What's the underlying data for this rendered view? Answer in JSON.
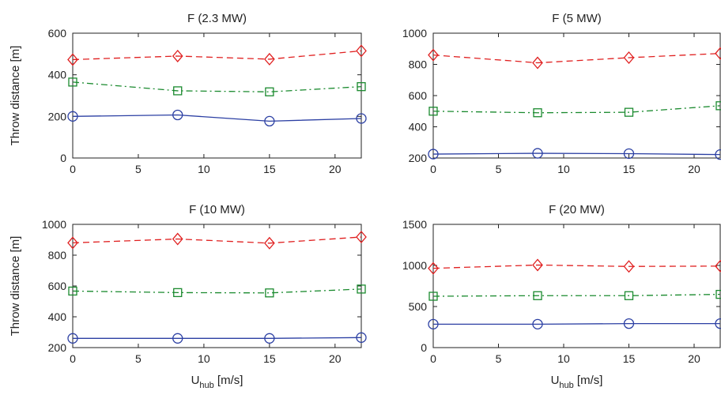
{
  "chart_data": [
    {
      "type": "line",
      "title": "F (2.3 MW)",
      "ylabel": "Throw distance [m]",
      "xlabel": "",
      "xlim": [
        0,
        22
      ],
      "ylim": [
        0,
        600
      ],
      "x_ticks": [
        0,
        5,
        10,
        15,
        20
      ],
      "y_ticks": [
        0,
        200,
        400,
        600
      ],
      "x": [
        0,
        8,
        15,
        22
      ],
      "series": [
        {
          "color": "#2b3fa3",
          "marker": "circle",
          "dash": "solid",
          "values": [
            200,
            207,
            177,
            190
          ]
        },
        {
          "color": "#1a8a2e",
          "marker": "square",
          "dash": "dashdot",
          "values": [
            365,
            323,
            318,
            343
          ]
        },
        {
          "color": "#e02020",
          "marker": "diamond",
          "dash": "dashed",
          "values": [
            473,
            490,
            475,
            515
          ]
        }
      ]
    },
    {
      "type": "line",
      "title": "F (5 MW)",
      "ylabel": "",
      "xlabel": "",
      "xlim": [
        0,
        22
      ],
      "ylim": [
        200,
        1000
      ],
      "x_ticks": [
        0,
        5,
        10,
        15,
        20
      ],
      "y_ticks": [
        200,
        400,
        600,
        800,
        1000
      ],
      "x": [
        0,
        8,
        15,
        22
      ],
      "series": [
        {
          "color": "#2b3fa3",
          "marker": "circle",
          "dash": "solid",
          "values": [
            225,
            230,
            228,
            222
          ]
        },
        {
          "color": "#1a8a2e",
          "marker": "square",
          "dash": "dashdot",
          "values": [
            500,
            490,
            493,
            535
          ]
        },
        {
          "color": "#e02020",
          "marker": "diamond",
          "dash": "dashed",
          "values": [
            860,
            810,
            843,
            870
          ]
        }
      ]
    },
    {
      "type": "line",
      "title": "F (10 MW)",
      "ylabel": "Throw distance [m]",
      "xlabel": "U",
      "xlabel_sub": "hub",
      "xlabel_unit": " [m/s]",
      "xlim": [
        0,
        22
      ],
      "ylim": [
        200,
        1000
      ],
      "x_ticks": [
        0,
        5,
        10,
        15,
        20
      ],
      "y_ticks": [
        200,
        400,
        600,
        800,
        1000
      ],
      "x": [
        0,
        8,
        15,
        22
      ],
      "series": [
        {
          "color": "#2b3fa3",
          "marker": "circle",
          "dash": "solid",
          "values": [
            260,
            260,
            260,
            265
          ]
        },
        {
          "color": "#1a8a2e",
          "marker": "square",
          "dash": "dashdot",
          "values": [
            567,
            557,
            555,
            580
          ]
        },
        {
          "color": "#e02020",
          "marker": "diamond",
          "dash": "dashed",
          "values": [
            880,
            905,
            878,
            918
          ]
        }
      ]
    },
    {
      "type": "line",
      "title": "F (20 MW)",
      "ylabel": "",
      "xlabel": "U",
      "xlabel_sub": "hub",
      "xlabel_unit": " [m/s]",
      "xlim": [
        0,
        22
      ],
      "ylim": [
        0,
        1500
      ],
      "x_ticks": [
        0,
        5,
        10,
        15,
        20
      ],
      "y_ticks": [
        0,
        500,
        1000,
        1500
      ],
      "x": [
        0,
        8,
        15,
        22
      ],
      "series": [
        {
          "color": "#2b3fa3",
          "marker": "circle",
          "dash": "solid",
          "values": [
            285,
            285,
            292,
            292
          ]
        },
        {
          "color": "#1a8a2e",
          "marker": "square",
          "dash": "dashdot",
          "values": [
            625,
            632,
            632,
            648
          ]
        },
        {
          "color": "#e02020",
          "marker": "diamond",
          "dash": "dashed",
          "values": [
            965,
            1005,
            988,
            992
          ]
        }
      ]
    }
  ]
}
